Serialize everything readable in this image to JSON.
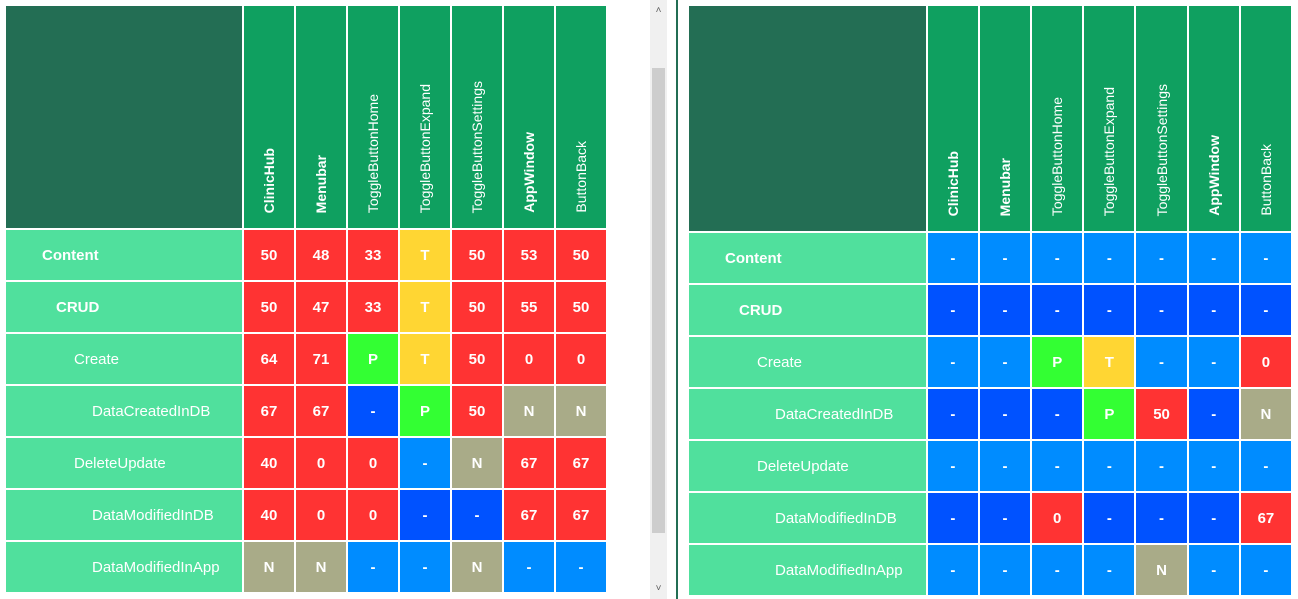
{
  "colors": {
    "red": "#ff3333",
    "yellow": "#ffd633",
    "green": "#33ff33",
    "gray": "#a9ab88",
    "light_blue": "#008cff",
    "dark_blue": "#0052ff",
    "corner": "#236e54",
    "header": "#0fa060",
    "row_label": "#50e09d"
  },
  "columns": [
    {
      "label": "ClinicHub",
      "bold": true
    },
    {
      "label": "Menubar",
      "bold": true
    },
    {
      "label": "ToggleButtonHome",
      "bold": false
    },
    {
      "label": "ToggleButtonExpand",
      "bold": false
    },
    {
      "label": "ToggleButtonSettings",
      "bold": false
    },
    {
      "label": "AppWindow",
      "bold": true
    },
    {
      "label": "ButtonBack",
      "bold": false
    }
  ],
  "rows": [
    {
      "label": "Content",
      "bold": true,
      "indent": 1
    },
    {
      "label": "CRUD",
      "bold": true,
      "indent": 2
    },
    {
      "label": "Create",
      "bold": false,
      "indent": 3
    },
    {
      "label": "DataCreatedInDB",
      "bold": false,
      "indent": 4
    },
    {
      "label": "DeleteUpdate",
      "bold": false,
      "indent": 3
    },
    {
      "label": "DataModifiedInDB",
      "bold": false,
      "indent": 4
    },
    {
      "label": "DataModifiedInApp",
      "bold": false,
      "indent": 4
    }
  ],
  "left_matrix": [
    [
      {
        "v": "50",
        "c": "red"
      },
      {
        "v": "48",
        "c": "red"
      },
      {
        "v": "33",
        "c": "red"
      },
      {
        "v": "T",
        "c": "yellow"
      },
      {
        "v": "50",
        "c": "red"
      },
      {
        "v": "53",
        "c": "red"
      },
      {
        "v": "50",
        "c": "red"
      }
    ],
    [
      {
        "v": "50",
        "c": "red"
      },
      {
        "v": "47",
        "c": "red"
      },
      {
        "v": "33",
        "c": "red"
      },
      {
        "v": "T",
        "c": "yellow"
      },
      {
        "v": "50",
        "c": "red"
      },
      {
        "v": "55",
        "c": "red"
      },
      {
        "v": "50",
        "c": "red"
      }
    ],
    [
      {
        "v": "64",
        "c": "red"
      },
      {
        "v": "71",
        "c": "red"
      },
      {
        "v": "P",
        "c": "green"
      },
      {
        "v": "T",
        "c": "yellow"
      },
      {
        "v": "50",
        "c": "red"
      },
      {
        "v": "0",
        "c": "red"
      },
      {
        "v": "0",
        "c": "red"
      }
    ],
    [
      {
        "v": "67",
        "c": "red"
      },
      {
        "v": "67",
        "c": "red"
      },
      {
        "v": "-",
        "c": "dark_blue"
      },
      {
        "v": "P",
        "c": "green"
      },
      {
        "v": "50",
        "c": "red"
      },
      {
        "v": "N",
        "c": "gray"
      },
      {
        "v": "N",
        "c": "gray"
      }
    ],
    [
      {
        "v": "40",
        "c": "red"
      },
      {
        "v": "0",
        "c": "red"
      },
      {
        "v": "0",
        "c": "red"
      },
      {
        "v": "-",
        "c": "light_blue"
      },
      {
        "v": "N",
        "c": "gray"
      },
      {
        "v": "67",
        "c": "red"
      },
      {
        "v": "67",
        "c": "red"
      }
    ],
    [
      {
        "v": "40",
        "c": "red"
      },
      {
        "v": "0",
        "c": "red"
      },
      {
        "v": "0",
        "c": "red"
      },
      {
        "v": "-",
        "c": "dark_blue"
      },
      {
        "v": "-",
        "c": "dark_blue"
      },
      {
        "v": "67",
        "c": "red"
      },
      {
        "v": "67",
        "c": "red"
      }
    ],
    [
      {
        "v": "N",
        "c": "gray"
      },
      {
        "v": "N",
        "c": "gray"
      },
      {
        "v": "-",
        "c": "light_blue"
      },
      {
        "v": "-",
        "c": "light_blue"
      },
      {
        "v": "N",
        "c": "gray"
      },
      {
        "v": "-",
        "c": "light_blue"
      },
      {
        "v": "-",
        "c": "light_blue"
      }
    ]
  ],
  "right_matrix": [
    [
      {
        "v": "-",
        "c": "light_blue"
      },
      {
        "v": "-",
        "c": "light_blue"
      },
      {
        "v": "-",
        "c": "light_blue"
      },
      {
        "v": "-",
        "c": "light_blue"
      },
      {
        "v": "-",
        "c": "light_blue"
      },
      {
        "v": "-",
        "c": "light_blue"
      },
      {
        "v": "-",
        "c": "light_blue"
      }
    ],
    [
      {
        "v": "-",
        "c": "dark_blue"
      },
      {
        "v": "-",
        "c": "dark_blue"
      },
      {
        "v": "-",
        "c": "dark_blue"
      },
      {
        "v": "-",
        "c": "dark_blue"
      },
      {
        "v": "-",
        "c": "dark_blue"
      },
      {
        "v": "-",
        "c": "dark_blue"
      },
      {
        "v": "-",
        "c": "dark_blue"
      }
    ],
    [
      {
        "v": "-",
        "c": "light_blue"
      },
      {
        "v": "-",
        "c": "light_blue"
      },
      {
        "v": "P",
        "c": "green"
      },
      {
        "v": "T",
        "c": "yellow"
      },
      {
        "v": "-",
        "c": "light_blue"
      },
      {
        "v": "-",
        "c": "light_blue"
      },
      {
        "v": "0",
        "c": "red"
      }
    ],
    [
      {
        "v": "-",
        "c": "dark_blue"
      },
      {
        "v": "-",
        "c": "dark_blue"
      },
      {
        "v": "-",
        "c": "dark_blue"
      },
      {
        "v": "P",
        "c": "green"
      },
      {
        "v": "50",
        "c": "red"
      },
      {
        "v": "-",
        "c": "dark_blue"
      },
      {
        "v": "N",
        "c": "gray"
      }
    ],
    [
      {
        "v": "-",
        "c": "light_blue"
      },
      {
        "v": "-",
        "c": "light_blue"
      },
      {
        "v": "-",
        "c": "light_blue"
      },
      {
        "v": "-",
        "c": "light_blue"
      },
      {
        "v": "-",
        "c": "light_blue"
      },
      {
        "v": "-",
        "c": "light_blue"
      },
      {
        "v": "-",
        "c": "light_blue"
      }
    ],
    [
      {
        "v": "-",
        "c": "dark_blue"
      },
      {
        "v": "-",
        "c": "dark_blue"
      },
      {
        "v": "0",
        "c": "red"
      },
      {
        "v": "-",
        "c": "dark_blue"
      },
      {
        "v": "-",
        "c": "dark_blue"
      },
      {
        "v": "-",
        "c": "dark_blue"
      },
      {
        "v": "67",
        "c": "red"
      }
    ],
    [
      {
        "v": "-",
        "c": "light_blue"
      },
      {
        "v": "-",
        "c": "light_blue"
      },
      {
        "v": "-",
        "c": "light_blue"
      },
      {
        "v": "-",
        "c": "light_blue"
      },
      {
        "v": "N",
        "c": "gray"
      },
      {
        "v": "-",
        "c": "light_blue"
      },
      {
        "v": "-",
        "c": "light_blue"
      }
    ]
  ],
  "scrollbar": {
    "up_icon": "chevron-up-icon",
    "down_icon": "chevron-down-icon"
  }
}
